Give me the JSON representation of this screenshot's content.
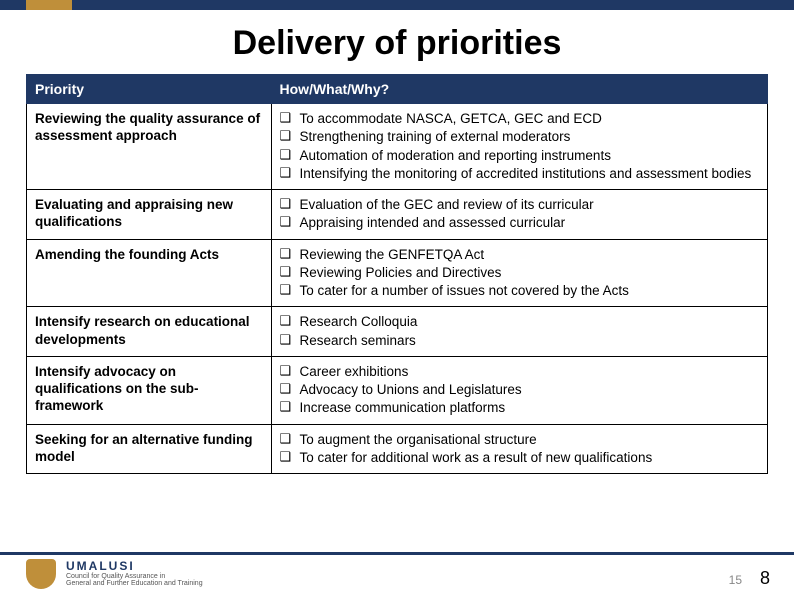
{
  "slide": {
    "title": "Delivery of priorities",
    "page_number_small": "15",
    "page_number_large": "8"
  },
  "colors": {
    "header_bg": "#1f3864",
    "accent_gold": "#bf8f3a",
    "text": "#000000",
    "background": "#ffffff"
  },
  "logo": {
    "name": "UMALUSI",
    "subtitle1": "Council for Quality Assurance in",
    "subtitle2": "General and Further Education and Training"
  },
  "table": {
    "headers": {
      "col1": "Priority",
      "col2": "How/What/Why?"
    },
    "rows": [
      {
        "priority": "Reviewing the quality assurance of assessment approach",
        "items": [
          "To accommodate NASCA, GETCA, GEC and ECD",
          "Strengthening training of external moderators",
          "Automation of moderation and reporting instruments",
          "Intensifying the monitoring of accredited institutions and assessment bodies"
        ]
      },
      {
        "priority": "Evaluating and appraising new qualifications",
        "items": [
          "Evaluation of the GEC and review of its curricular",
          "Appraising intended and assessed curricular"
        ]
      },
      {
        "priority": "Amending the founding Acts",
        "items": [
          "Reviewing the GENFETQA Act",
          "Reviewing Policies and Directives",
          "To cater for a number of issues not covered by the Acts"
        ]
      },
      {
        "priority": "Intensify research on educational developments",
        "items": [
          "Research Colloquia",
          "Research seminars"
        ]
      },
      {
        "priority": "Intensify advocacy on qualifications on the sub-framework",
        "items": [
          "Career exhibitions",
          "Advocacy to Unions and Legislatures",
          "Increase communication platforms"
        ]
      },
      {
        "priority": "Seeking for an alternative funding model",
        "items": [
          "To augment the organisational structure",
          "To cater for additional work as a result of new qualifications"
        ]
      }
    ]
  }
}
